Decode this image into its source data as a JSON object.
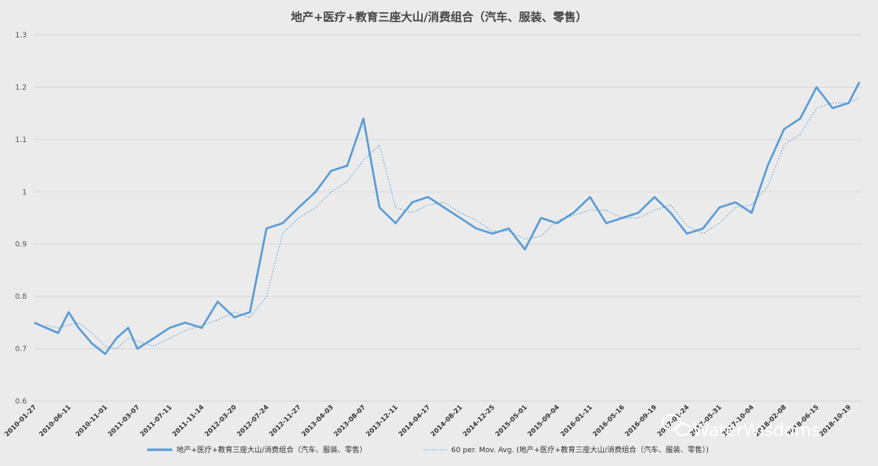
{
  "chart_data": {
    "type": "line",
    "title": "地产+医疗+教育三座大山/消费组合（汽车、服装、零售）",
    "ylim": [
      0.6,
      1.3
    ],
    "yticks": [
      "0.6",
      "0.7",
      "0.8",
      "0.9",
      "1",
      "1.1",
      "1.2",
      "1.3"
    ],
    "grid": "horizontal",
    "legend_position": "bottom",
    "x_tick_labels": [
      "2010-01-27",
      "2010-06-11",
      "2010-11-01",
      "2011-03-07",
      "2011-07-11",
      "2011-11-14",
      "2012-03-20",
      "2012-07-24",
      "2012-11-27",
      "2013-04-03",
      "2013-08-07",
      "2013-12-11",
      "2014-04-17",
      "2014-08-21",
      "2014-12-25",
      "2015-05-01",
      "2015-09-04",
      "2016-01-11",
      "2016-05-16",
      "2016-09-19",
      "2017-01-24",
      "2017-05-31",
      "2017-10-04",
      "2018-02-08",
      "2018-06-15",
      "2018-10-19"
    ],
    "series": [
      {
        "name": "地产+医疗+教育三座大山/消费组合（汽车、服装、零售）",
        "style": "solid",
        "color": "#5b9bd5",
        "x": [
          "2010-01-27",
          "2010-03-15",
          "2010-05-01",
          "2010-06-11",
          "2010-07-20",
          "2010-09-10",
          "2010-11-01",
          "2010-12-15",
          "2011-01-30",
          "2011-03-07",
          "2011-05-10",
          "2011-07-11",
          "2011-09-10",
          "2011-11-14",
          "2012-01-15",
          "2012-03-20",
          "2012-05-20",
          "2012-07-24",
          "2012-09-25",
          "2012-11-27",
          "2013-02-01",
          "2013-04-03",
          "2013-06-05",
          "2013-08-07",
          "2013-10-09",
          "2013-12-11",
          "2014-02-14",
          "2014-04-17",
          "2014-06-19",
          "2014-08-21",
          "2014-10-23",
          "2014-12-25",
          "2015-02-27",
          "2015-05-01",
          "2015-07-03",
          "2015-09-04",
          "2015-11-07",
          "2016-01-11",
          "2016-03-14",
          "2016-05-16",
          "2016-07-18",
          "2016-09-19",
          "2016-11-21",
          "2017-01-24",
          "2017-03-28",
          "2017-05-31",
          "2017-08-02",
          "2017-10-04",
          "2017-12-06",
          "2018-02-08",
          "2018-04-12",
          "2018-06-15",
          "2018-08-17",
          "2018-10-19",
          "2018-11-30"
        ],
        "y": [
          0.75,
          0.74,
          0.73,
          0.77,
          0.74,
          0.71,
          0.69,
          0.72,
          0.74,
          0.7,
          0.72,
          0.74,
          0.75,
          0.74,
          0.79,
          0.76,
          0.77,
          0.93,
          0.94,
          0.97,
          1.0,
          1.04,
          1.05,
          1.14,
          0.97,
          0.94,
          0.98,
          0.99,
          0.97,
          0.95,
          0.93,
          0.92,
          0.93,
          0.89,
          0.95,
          0.94,
          0.96,
          0.99,
          0.94,
          0.95,
          0.96,
          0.99,
          0.96,
          0.92,
          0.93,
          0.97,
          0.98,
          0.96,
          1.05,
          1.12,
          1.14,
          1.2,
          1.16,
          1.17,
          1.21
        ]
      },
      {
        "name": "60 per. Mov. Avg. (地产+医疗+教育三座大山/消费组合（汽车、服装、零售）)",
        "style": "dotted",
        "color": "#5b9bd5",
        "x": [
          "2010-03-15",
          "2010-05-01",
          "2010-06-11",
          "2010-07-20",
          "2010-09-10",
          "2010-11-01",
          "2010-12-15",
          "2011-01-30",
          "2011-03-07",
          "2011-05-10",
          "2011-07-11",
          "2011-09-10",
          "2011-11-14",
          "2012-01-15",
          "2012-03-20",
          "2012-05-20",
          "2012-07-24",
          "2012-09-25",
          "2012-11-27",
          "2013-02-01",
          "2013-04-03",
          "2013-06-05",
          "2013-08-07",
          "2013-10-09",
          "2013-12-11",
          "2014-02-14",
          "2014-04-17",
          "2014-06-19",
          "2014-08-21",
          "2014-10-23",
          "2014-12-25",
          "2015-02-27",
          "2015-05-01",
          "2015-07-03",
          "2015-09-04",
          "2015-11-07",
          "2016-01-11",
          "2016-03-14",
          "2016-05-16",
          "2016-07-18",
          "2016-09-19",
          "2016-11-21",
          "2017-01-24",
          "2017-03-28",
          "2017-05-31",
          "2017-08-02",
          "2017-10-04",
          "2017-12-06",
          "2018-02-08",
          "2018-04-12",
          "2018-06-15",
          "2018-08-17",
          "2018-10-19",
          "2018-11-30"
        ],
        "y": [
          0.745,
          0.74,
          0.745,
          0.75,
          0.73,
          0.705,
          0.7,
          0.72,
          0.715,
          0.705,
          0.72,
          0.735,
          0.745,
          0.755,
          0.77,
          0.76,
          0.8,
          0.92,
          0.95,
          0.97,
          1.0,
          1.02,
          1.06,
          1.09,
          0.97,
          0.96,
          0.975,
          0.98,
          0.96,
          0.945,
          0.925,
          0.925,
          0.91,
          0.915,
          0.945,
          0.955,
          0.965,
          0.965,
          0.95,
          0.95,
          0.965,
          0.975,
          0.935,
          0.92,
          0.94,
          0.97,
          0.975,
          1.01,
          1.09,
          1.11,
          1.16,
          1.17,
          1.17,
          1.18
        ]
      }
    ]
  },
  "watermark": {
    "text": "WaterWisdoms",
    "icon": "wechat-icon"
  }
}
